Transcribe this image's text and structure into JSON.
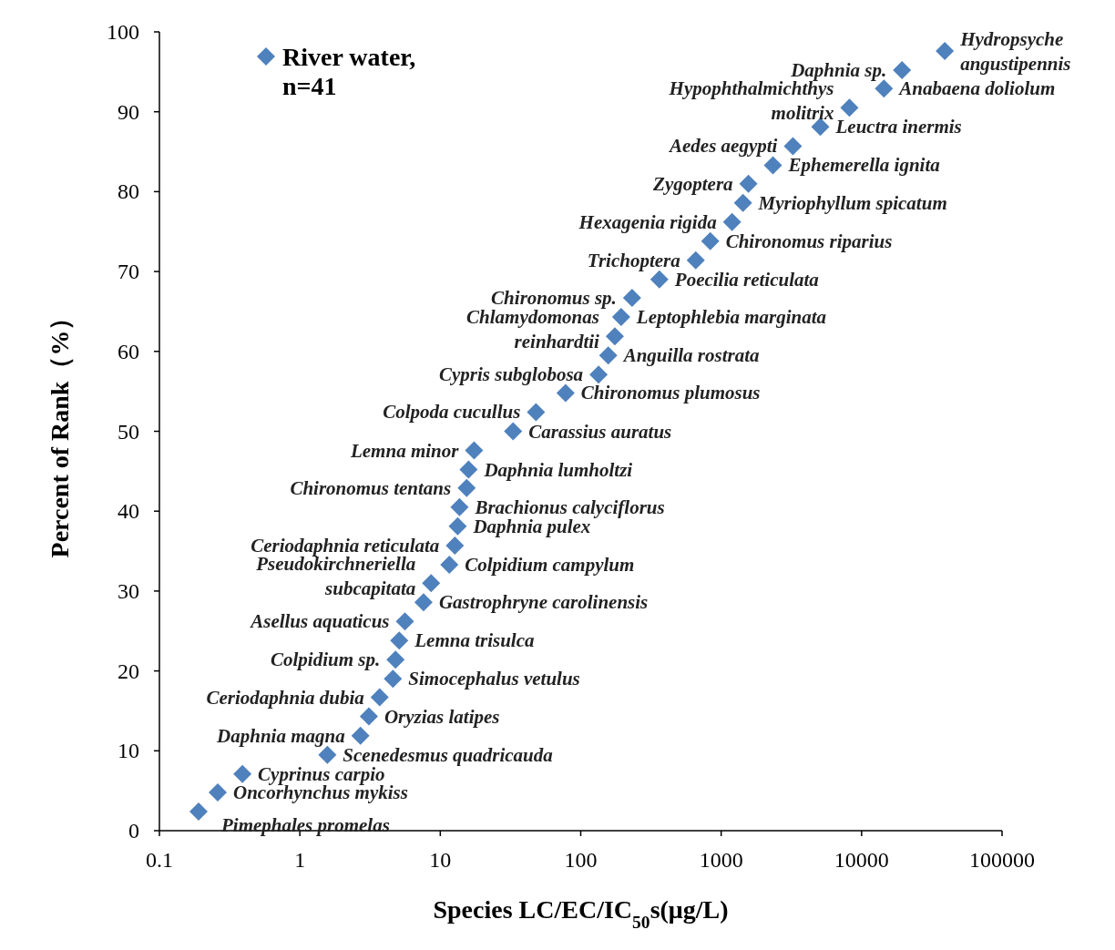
{
  "chart_data": {
    "type": "scatter",
    "xlabel": "Species LC/EC/IC$_{50}$s(μg/L)",
    "ylabel": "Percent of Rank（%）",
    "log": "x",
    "xlim": [
      0.1,
      100000
    ],
    "xticks": [
      {
        "value": 0.1,
        "label": "0.1"
      },
      {
        "value": 1,
        "label": "1"
      },
      {
        "value": 10,
        "label": "10"
      },
      {
        "value": 100,
        "label": "100"
      },
      {
        "value": 1000,
        "label": "1000"
      },
      {
        "value": 10000,
        "label": "10000"
      },
      {
        "value": 100000,
        "label": "100000"
      }
    ],
    "ylim": [
      0,
      100
    ],
    "yticks": [
      0,
      10,
      20,
      30,
      40,
      50,
      60,
      70,
      80,
      90,
      100
    ],
    "grid": false,
    "legend": "top left",
    "marker": "diamond",
    "series": [
      {
        "name": "River water,\nn=41",
        "color": "#4f81bd",
        "x": [
          0.19,
          0.26,
          0.39,
          1.57,
          2.7,
          3.1,
          3.7,
          4.6,
          4.8,
          5.1,
          5.6,
          7.6,
          8.6,
          11.6,
          12.7,
          13.3,
          13.7,
          15.4,
          15.9,
          17.4,
          33,
          48,
          78,
          134,
          157,
          175,
          194,
          232,
          363,
          659,
          836,
          1196,
          1430,
          1563,
          2338,
          3243,
          5080,
          8185,
          14420,
          19400,
          39100
        ],
        "values": [
          2.4,
          4.8,
          7.1,
          9.5,
          11.9,
          14.3,
          16.7,
          19.0,
          21.4,
          23.8,
          26.2,
          28.6,
          31.0,
          33.3,
          35.7,
          38.1,
          40.5,
          42.9,
          45.2,
          47.6,
          50.0,
          52.4,
          54.8,
          57.1,
          59.5,
          61.9,
          64.3,
          66.7,
          69.0,
          71.4,
          73.8,
          76.2,
          78.6,
          81.0,
          83.3,
          85.7,
          88.1,
          90.5,
          92.9,
          95.2,
          97.6
        ]
      }
    ],
    "annotations": [
      {
        "text": "Pimephales promelas",
        "x": 0.19,
        "y": 2.4
      },
      {
        "text": "Oncorhynchus mykiss",
        "x": 0.26,
        "y": 4.8
      },
      {
        "text": "Cyprinus carpio",
        "x": 0.39,
        "y": 7.1
      },
      {
        "text": "Scenedesmus quadricauda",
        "x": 1.57,
        "y": 9.5
      },
      {
        "text": "Daphnia magna",
        "x": 2.7,
        "y": 11.9
      },
      {
        "text": "Oryzias latipes",
        "x": 3.1,
        "y": 14.3
      },
      {
        "text": "Ceriodaphnia dubia",
        "x": 3.7,
        "y": 16.7
      },
      {
        "text": "Simocephalus vetulus",
        "x": 4.6,
        "y": 19.0
      },
      {
        "text": "Colpidium sp.",
        "x": 4.8,
        "y": 21.4
      },
      {
        "text": "Lemna trisulca",
        "x": 5.1,
        "y": 23.8
      },
      {
        "text": "Asellus aquaticus",
        "x": 5.6,
        "y": 26.2
      },
      {
        "text": "Gastrophryne carolinensis",
        "x": 7.6,
        "y": 28.6
      },
      {
        "text": "Pseudokirchneriella\nsubcapitata",
        "x": 8.6,
        "y": 31.0
      },
      {
        "text": "Colpidium campylum",
        "x": 11.6,
        "y": 33.3
      },
      {
        "text": "Ceriodaphnia reticulata",
        "x": 12.7,
        "y": 35.7
      },
      {
        "text": "Daphnia pulex",
        "x": 13.3,
        "y": 38.1
      },
      {
        "text": "Brachionus calyciflorus",
        "x": 13.7,
        "y": 40.5
      },
      {
        "text": "Chironomus tentans",
        "x": 15.4,
        "y": 42.9
      },
      {
        "text": "Daphnia lumholtzi",
        "x": 15.9,
        "y": 45.2
      },
      {
        "text": "Lemna minor",
        "x": 17.4,
        "y": 47.6
      },
      {
        "text": "Carassius auratus",
        "x": 33,
        "y": 50.0
      },
      {
        "text": "Colpoda cucullus",
        "x": 48,
        "y": 52.4
      },
      {
        "text": "Chironomus plumosus",
        "x": 78,
        "y": 54.8
      },
      {
        "text": "Cypris subglobosa",
        "x": 134,
        "y": 57.1
      },
      {
        "text": "Anguilla rostrata",
        "x": 157,
        "y": 59.5
      },
      {
        "text": "Chlamydomonas\nreinhardtii",
        "x": 175,
        "y": 61.9
      },
      {
        "text": "Leptophlebia marginata",
        "x": 194,
        "y": 64.3
      },
      {
        "text": "Chironomus sp.",
        "x": 232,
        "y": 66.7
      },
      {
        "text": "Poecilia reticulata",
        "x": 363,
        "y": 69.0
      },
      {
        "text": "Trichoptera",
        "x": 659,
        "y": 71.4
      },
      {
        "text": "Chironomus riparius",
        "x": 836,
        "y": 73.8
      },
      {
        "text": "Hexagenia rigida",
        "x": 1196,
        "y": 76.2
      },
      {
        "text": "Myriophyllum spicatum",
        "x": 1430,
        "y": 78.6
      },
      {
        "text": "Zygoptera",
        "x": 1563,
        "y": 81.0
      },
      {
        "text": "Ephemerella ignita",
        "x": 2338,
        "y": 83.3
      },
      {
        "text": "Aedes aegypti",
        "x": 3243,
        "y": 85.7
      },
      {
        "text": "Leuctra inermis",
        "x": 5080,
        "y": 88.1
      },
      {
        "text": "Hypophthalmichthys\nmolitrix",
        "x": 8185,
        "y": 90.5
      },
      {
        "text": "Anabaena doliolum",
        "x": 14420,
        "y": 92.9
      },
      {
        "text": "Daphnia sp.",
        "x": 19400,
        "y": 95.2
      },
      {
        "text": "Hydropsyche\nangustipennis",
        "x": 39100,
        "y": 97.6
      }
    ]
  }
}
